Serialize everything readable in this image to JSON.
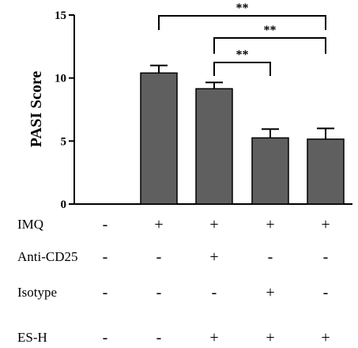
{
  "chart_data": {
    "type": "bar",
    "ylabel": "PASI Score",
    "ylim": [
      0,
      15
    ],
    "yticks": [
      "0",
      "5",
      "10",
      "15"
    ],
    "bar_color": "#5f5f5f",
    "values": [
      0,
      10.4,
      9.15,
      5.25,
      5.15
    ],
    "errors": [
      0,
      0.6,
      0.5,
      0.7,
      0.85
    ],
    "significance": [
      {
        "from": 1,
        "to": 4,
        "label": "**"
      },
      {
        "from": 2,
        "to": 4,
        "label": "**"
      },
      {
        "from": 2,
        "to": 3,
        "label": "**"
      }
    ],
    "treatments": [
      {
        "label": "IMQ",
        "signs": [
          "-",
          "+",
          "+",
          "+",
          "+"
        ]
      },
      {
        "label": "Anti-CD25",
        "signs": [
          "-",
          "-",
          "+",
          "-",
          "-"
        ]
      },
      {
        "label": "Isotype",
        "signs": [
          "-",
          "-",
          "-",
          "+",
          "-"
        ]
      },
      {
        "label": "ES-H",
        "signs": [
          "-",
          "-",
          "+",
          "+",
          "+"
        ]
      }
    ]
  }
}
